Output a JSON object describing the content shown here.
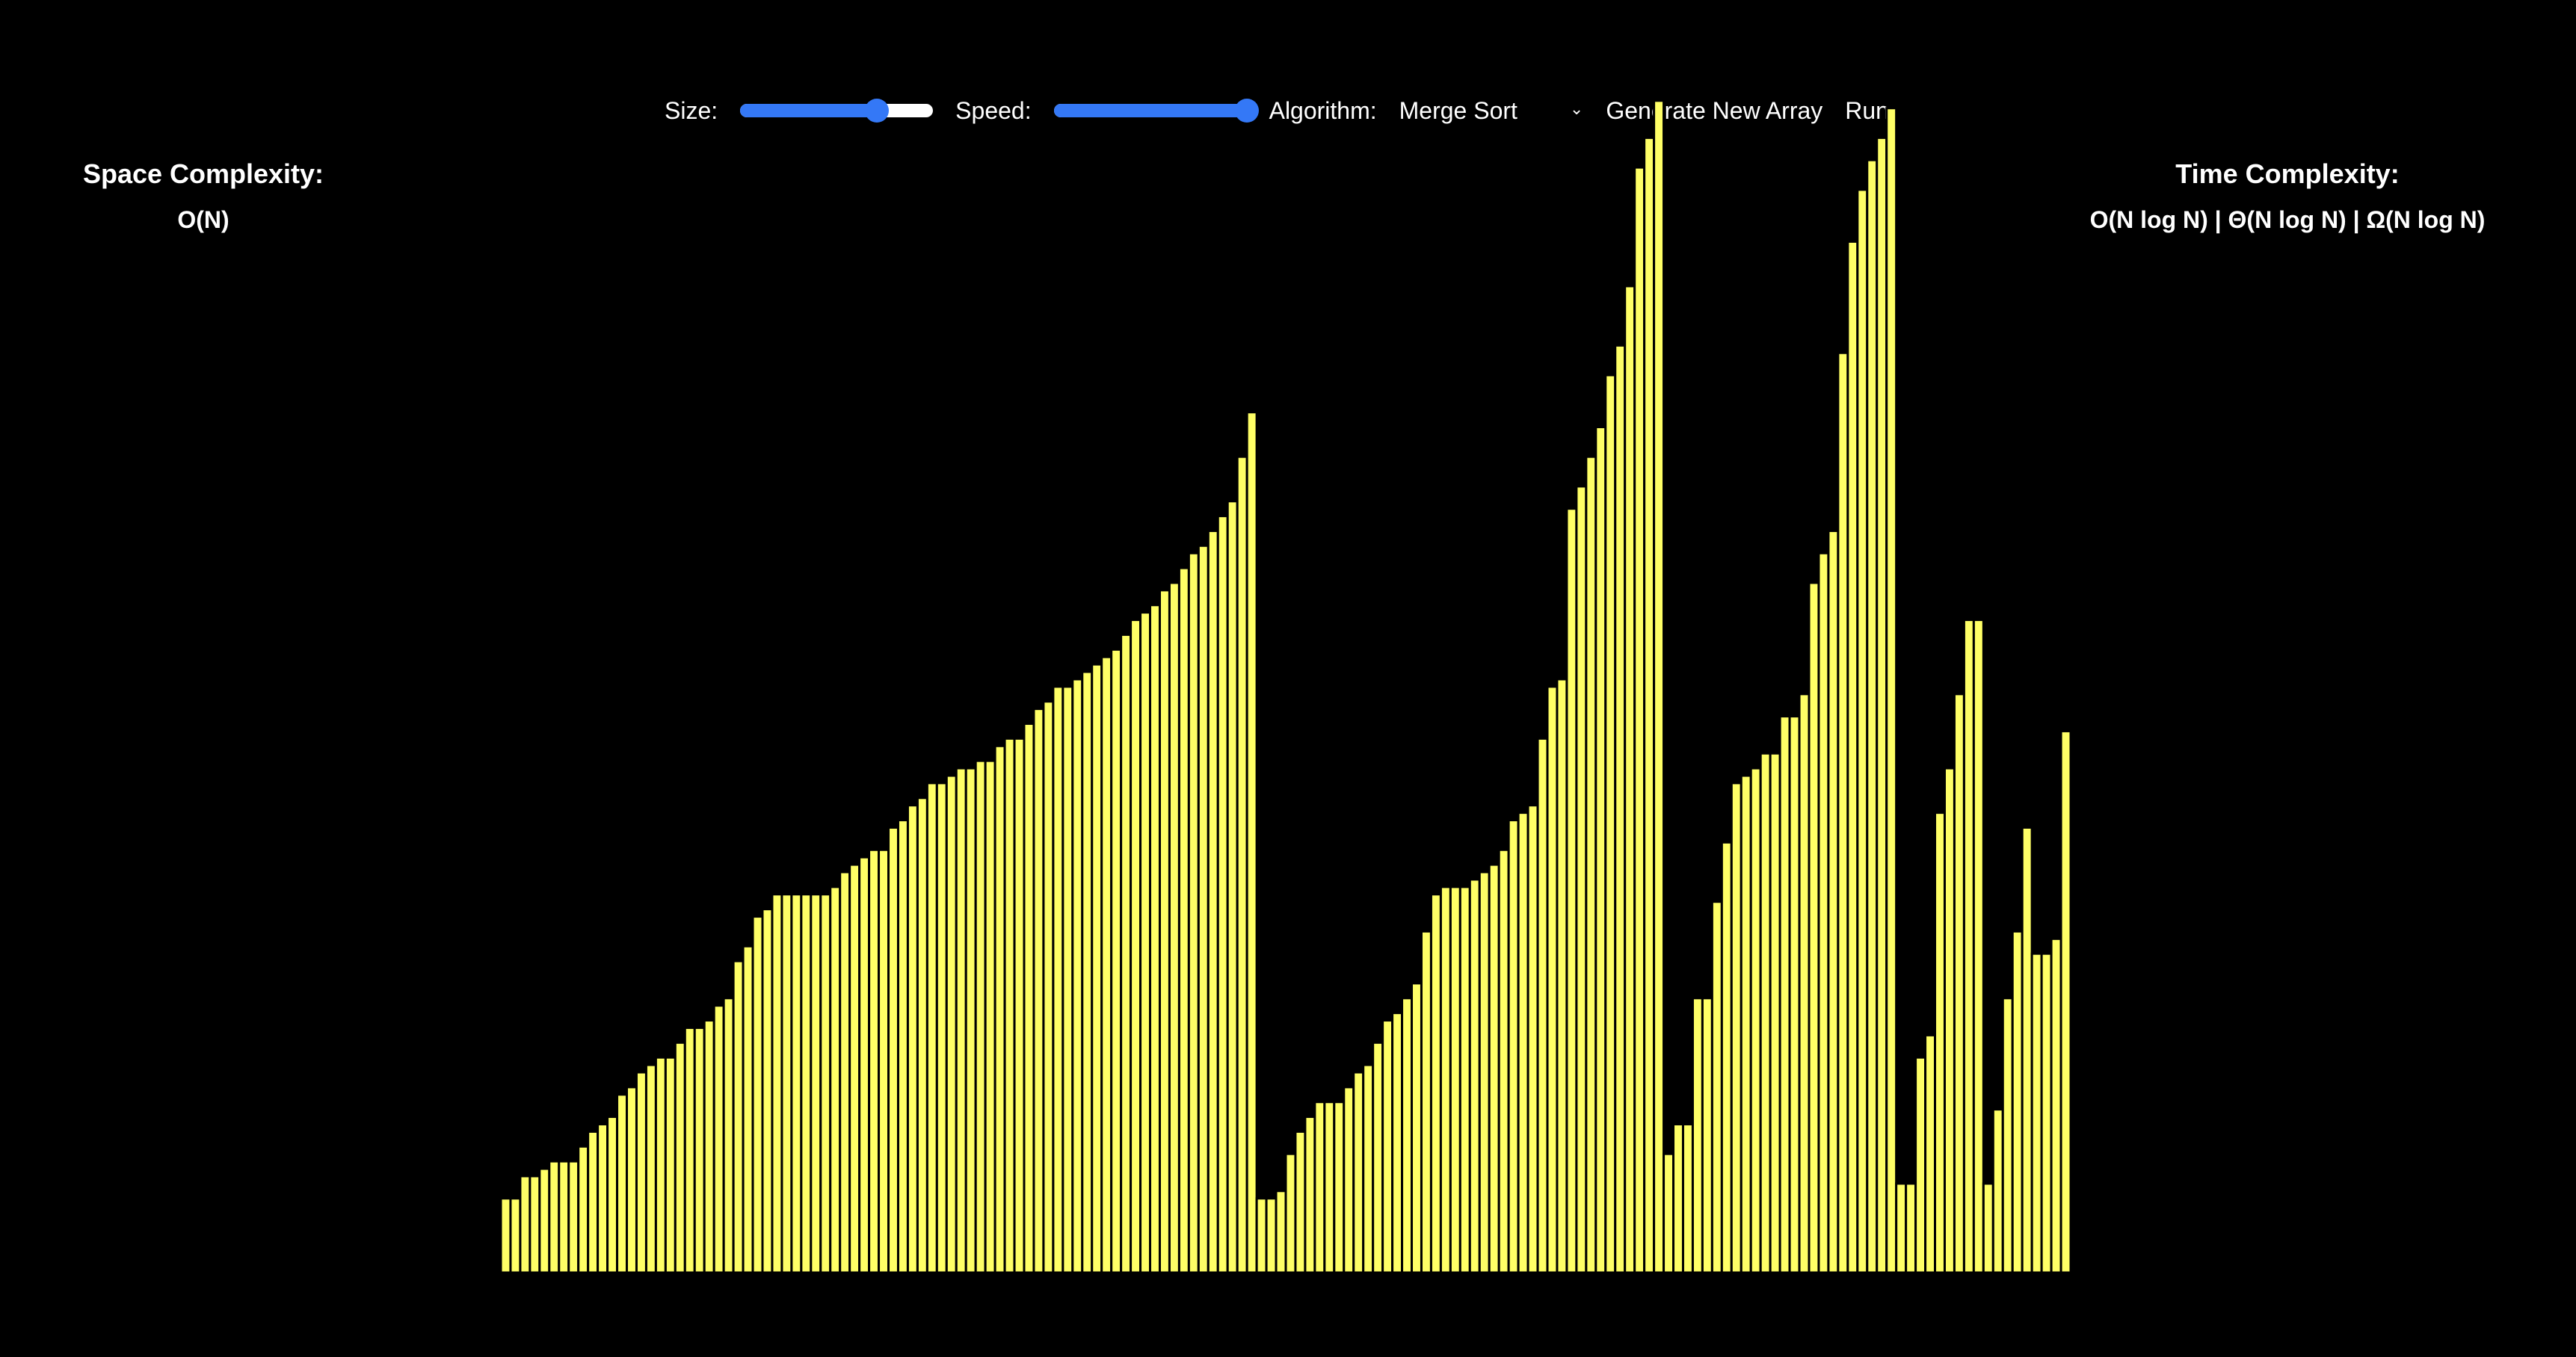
{
  "controls": {
    "size_label": "Size:",
    "size_level": 0.71,
    "speed_label": "Speed:",
    "speed_level": 1.0,
    "algorithm_label": "Algorithm:",
    "algorithm_value": "Merge Sort",
    "generate_label": "Generate New Array",
    "run_label": "Run"
  },
  "space_complexity": {
    "title": "Space Complexity:",
    "value": "O(N)"
  },
  "time_complexity": {
    "title": "Time Complexity:",
    "value": "O(N log N) | Θ(N log N) | Ω(N log N)"
  },
  "colors": {
    "bar": "#ffff66",
    "accent": "#3478f6",
    "background": "#000000"
  },
  "chart_data": {
    "type": "bar",
    "values": [
      100,
      100,
      130,
      130,
      140,
      150,
      150,
      150,
      170,
      190,
      200,
      210,
      240,
      250,
      270,
      280,
      290,
      290,
      310,
      330,
      330,
      340,
      360,
      370,
      420,
      440,
      480,
      490,
      510,
      510,
      510,
      510,
      510,
      510,
      520,
      540,
      550,
      560,
      570,
      570,
      600,
      610,
      630,
      640,
      660,
      660,
      670,
      680,
      680,
      690,
      690,
      710,
      720,
      720,
      740,
      760,
      770,
      790,
      790,
      800,
      810,
      820,
      830,
      840,
      860,
      880,
      890,
      900,
      920,
      930,
      950,
      970,
      980,
      1000,
      1020,
      1040,
      1100,
      1160,
      100,
      100,
      110,
      160,
      190,
      210,
      230,
      230,
      230,
      250,
      270,
      280,
      310,
      340,
      350,
      370,
      390,
      460,
      510,
      520,
      520,
      520,
      530,
      540,
      550,
      570,
      610,
      620,
      630,
      720,
      790,
      800,
      1030,
      1060,
      1100,
      1140,
      1210,
      1250,
      1330,
      1490,
      1530,
      1580,
      160,
      200,
      200,
      370,
      370,
      500,
      580,
      660,
      670,
      680,
      700,
      700,
      750,
      750,
      780,
      930,
      970,
      1000,
      1240,
      1390,
      1460,
      1500,
      1530,
      1570,
      120,
      120,
      290,
      320,
      620,
      680,
      780,
      880,
      880,
      120,
      220,
      370,
      460,
      600,
      430,
      430,
      450,
      730
    ]
  }
}
